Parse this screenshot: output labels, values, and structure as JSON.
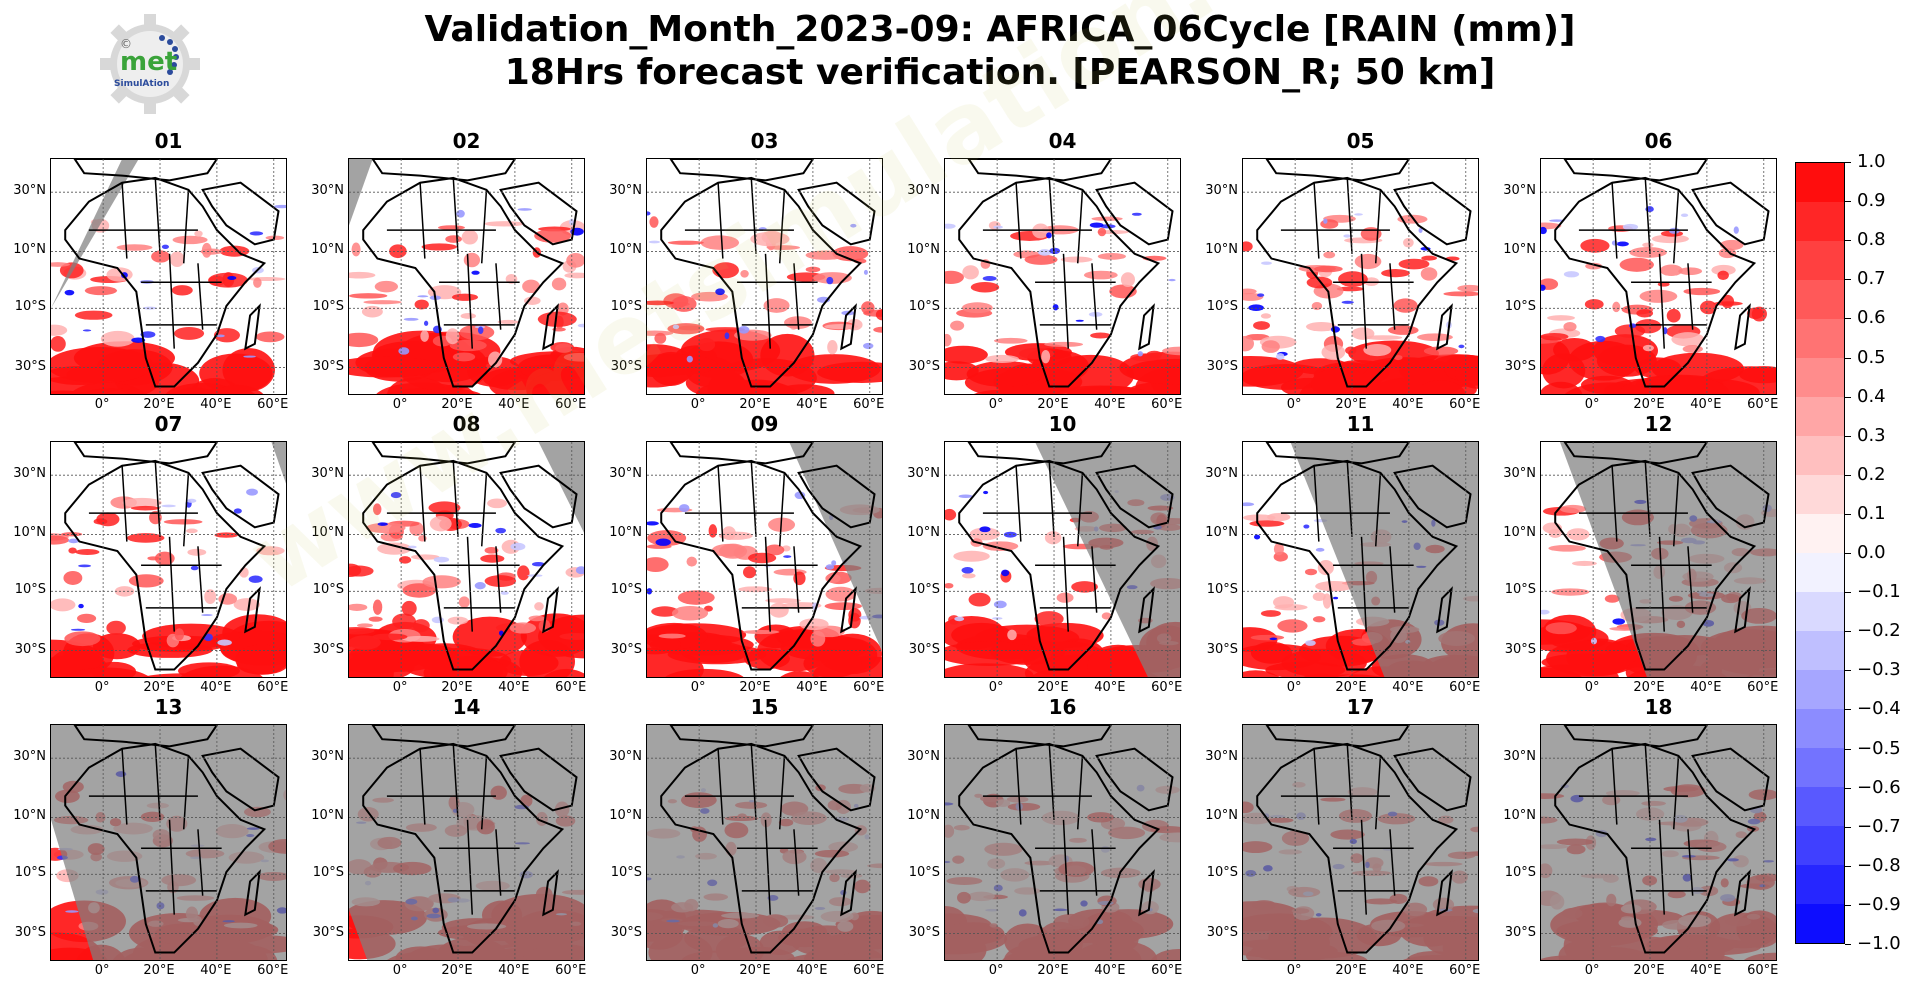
{
  "title": {
    "line1": "Validation_Month_2023-09: AFRICA_06Cycle [RAIN (mm)]",
    "line2": "18Hrs forecast verification.  [PEARSON_R; 50 km]"
  },
  "logo": {
    "icon": "gear-logo-icon",
    "text_main": "met",
    "text_sub": "SimulAtion",
    "symbol": "©"
  },
  "watermark": "www.metsimulation.com",
  "map": {
    "lat_ticks": [
      "30°N",
      "10°N",
      "10°S",
      "30°S"
    ],
    "lon_ticks": [
      "0°",
      "20°E",
      "40°E",
      "60°E"
    ],
    "panels": [
      {
        "label": "01",
        "night": [
          [
            0.3,
            0
          ],
          [
            0.37,
            0
          ],
          [
            0,
            0.63
          ]
        ]
      },
      {
        "label": "02",
        "night": [
          [
            0,
            0
          ],
          [
            0.1,
            0
          ],
          [
            0,
            0.28
          ]
        ]
      },
      {
        "label": "03",
        "night": []
      },
      {
        "label": "04",
        "night": []
      },
      {
        "label": "05",
        "night": []
      },
      {
        "label": "06",
        "night": []
      },
      {
        "label": "07",
        "night": [
          [
            0.93,
            0
          ],
          [
            1,
            0
          ],
          [
            1,
            0.2
          ]
        ]
      },
      {
        "label": "08",
        "night": [
          [
            0.8,
            0
          ],
          [
            1,
            0
          ],
          [
            1,
            0.4
          ]
        ]
      },
      {
        "label": "09",
        "night": [
          [
            0.6,
            0
          ],
          [
            1,
            0
          ],
          [
            1,
            0.9
          ]
        ]
      },
      {
        "label": "10",
        "night": [
          [
            0.38,
            0
          ],
          [
            1,
            0
          ],
          [
            1,
            1
          ],
          [
            0.86,
            1
          ]
        ]
      },
      {
        "label": "11",
        "night": [
          [
            0.2,
            0
          ],
          [
            1,
            0
          ],
          [
            1,
            1
          ],
          [
            0.6,
            1
          ]
        ]
      },
      {
        "label": "12",
        "night": [
          [
            0.08,
            0
          ],
          [
            1,
            0
          ],
          [
            1,
            1
          ],
          [
            0.45,
            1
          ]
        ]
      },
      {
        "label": "13",
        "night": [
          [
            0,
            0
          ],
          [
            1,
            0
          ],
          [
            1,
            1
          ],
          [
            0.18,
            1
          ],
          [
            0,
            0.4
          ]
        ]
      },
      {
        "label": "14",
        "night": [
          [
            0,
            0
          ],
          [
            1,
            0
          ],
          [
            1,
            1
          ],
          [
            0.08,
            1
          ],
          [
            0,
            0.78
          ]
        ]
      },
      {
        "label": "15",
        "night": [
          [
            0,
            0
          ],
          [
            1,
            0
          ],
          [
            1,
            1
          ],
          [
            0,
            1
          ]
        ]
      },
      {
        "label": "16",
        "night": [
          [
            0,
            0
          ],
          [
            1,
            0
          ],
          [
            1,
            1
          ],
          [
            0,
            1
          ]
        ]
      },
      {
        "label": "17",
        "night": [
          [
            0,
            0
          ],
          [
            1,
            0
          ],
          [
            1,
            1
          ],
          [
            0,
            1
          ]
        ]
      },
      {
        "label": "18",
        "night": [
          [
            0,
            0
          ],
          [
            1,
            0
          ],
          [
            1,
            1
          ],
          [
            0,
            1
          ]
        ]
      }
    ]
  },
  "colorbar": {
    "min": -1.0,
    "max": 1.0,
    "ticks": [
      "1.0",
      "0.9",
      "0.8",
      "0.7",
      "0.6",
      "0.5",
      "0.4",
      "0.3",
      "0.2",
      "0.1",
      "0.0",
      "−0.1",
      "−0.2",
      "−0.3",
      "−0.4",
      "−0.5",
      "−0.6",
      "−0.7",
      "−0.8",
      "−0.9",
      "−1.0"
    ],
    "positive_color": "#ff0000",
    "negative_color": "#0000ff",
    "night_mask_color": "#808080"
  }
}
